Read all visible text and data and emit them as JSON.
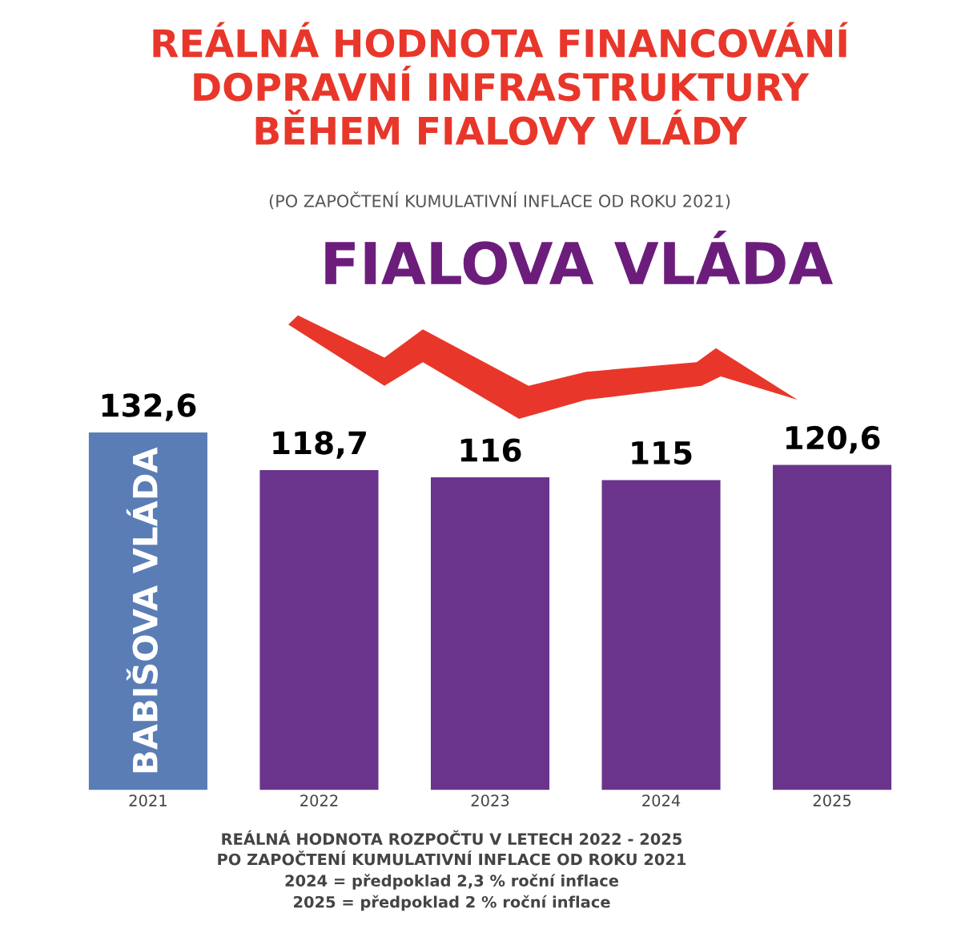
{
  "chart_data": {
    "type": "bar",
    "title": "REÁLNÁ HODNOTA FINANCOVÁNÍ\nDOPRAVNÍ INFRASTRUKTURY\nBĚHEM FIALOVY VLÁDY",
    "subtitle": "(PO ZAPOČTENÍ KUMULATIVNÍ INFLACE OD ROKU 2021)",
    "categories": [
      "2021",
      "2022",
      "2023",
      "2024",
      "2025"
    ],
    "values": [
      132.6,
      118.7,
      116,
      115,
      120.6
    ],
    "value_labels": [
      "132,6",
      "118,7",
      "116",
      "115",
      "120,6"
    ],
    "colors": [
      "#5a7db5",
      "#6a348c",
      "#6a348c",
      "#6a348c",
      "#6a348c"
    ],
    "tick_labels": "x",
    "grid": false,
    "legend": false,
    "annotations": [
      "FIALOVA VLÁDA",
      "BABIŠOVA VLÁDA",
      "REÁLNÁ HODNOTA ROZPOČTU V LETECH 2022 - 2025\nPO ZAPOČTENÍ KUMULATIVNÍ INFLACE OD ROKU 2021\n2024 = předpoklad 2,3 % roční inflace\n2025 = předpoklad 2 % roční inflace"
    ]
  }
}
